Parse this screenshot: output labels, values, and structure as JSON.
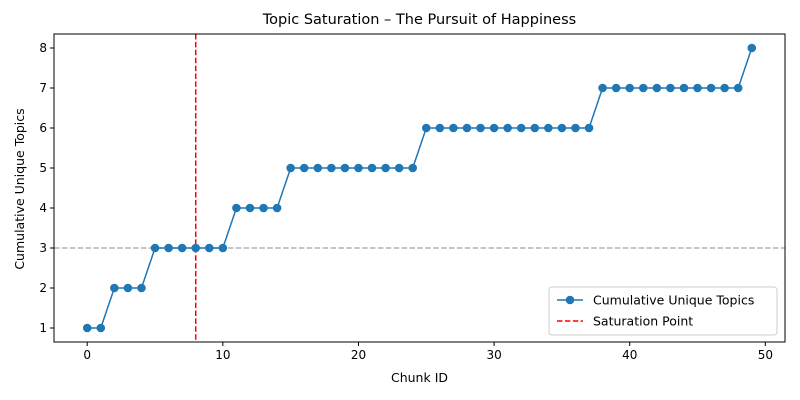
{
  "chart_data": {
    "type": "line",
    "title": "Topic Saturation – The Pursuit of Happiness",
    "xlabel": "Chunk ID",
    "ylabel": "Cumulative Unique Topics",
    "xlim": [
      -2.45,
      51.45
    ],
    "ylim": [
      0.65,
      8.35
    ],
    "xticks": [
      0,
      10,
      20,
      30,
      40,
      50
    ],
    "yticks": [
      1,
      2,
      3,
      4,
      5,
      6,
      7,
      8
    ],
    "grid": false,
    "legend_position": "lower-right",
    "series": [
      {
        "name": "Cumulative Unique Topics",
        "color": "#1f77b4",
        "marker": "circle",
        "x": [
          0,
          1,
          2,
          3,
          4,
          5,
          6,
          7,
          8,
          9,
          10,
          11,
          12,
          13,
          14,
          15,
          16,
          17,
          18,
          19,
          20,
          21,
          22,
          23,
          24,
          25,
          26,
          27,
          28,
          29,
          30,
          31,
          32,
          33,
          34,
          35,
          36,
          37,
          38,
          39,
          40,
          41,
          42,
          43,
          44,
          45,
          46,
          47,
          48,
          49
        ],
        "y": [
          1,
          1,
          2,
          2,
          2,
          3,
          3,
          3,
          3,
          3,
          3,
          4,
          4,
          4,
          4,
          5,
          5,
          5,
          5,
          5,
          5,
          5,
          5,
          5,
          5,
          6,
          6,
          6,
          6,
          6,
          6,
          6,
          6,
          6,
          6,
          6,
          6,
          6,
          7,
          7,
          7,
          7,
          7,
          7,
          7,
          7,
          7,
          7,
          7,
          8
        ]
      }
    ],
    "reference_lines": [
      {
        "name": "Saturation Point",
        "orientation": "vertical",
        "x": 8,
        "color": "#ff0000",
        "style": "dashed",
        "in_legend": true
      },
      {
        "orientation": "horizontal",
        "y": 3,
        "color": "#b0b0b0",
        "style": "dashed",
        "in_legend": false
      }
    ]
  }
}
